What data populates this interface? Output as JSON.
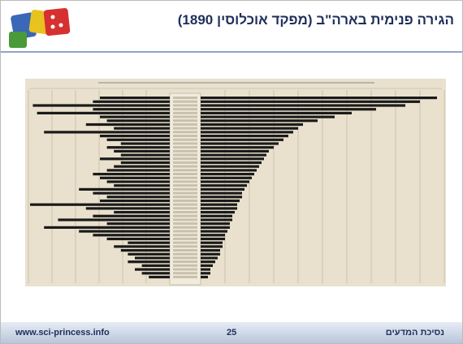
{
  "header": {
    "title": "הגירה פנימית בארה\"ב (מפקד אוכלוסין 1890)"
  },
  "figure": {
    "emigrants": [
      97,
      90,
      84,
      72,
      62,
      55,
      48,
      42,
      40,
      38,
      36,
      34,
      32,
      30,
      28,
      27,
      26,
      25,
      24,
      23,
      22,
      21,
      20,
      19,
      18,
      17,
      17,
      16,
      15,
      15,
      14,
      13,
      13,
      12,
      12,
      11,
      10,
      10,
      9,
      9,
      8,
      8,
      7,
      6,
      5,
      4,
      4,
      3
    ],
    "immigrants": [
      50,
      55,
      98,
      55,
      95,
      50,
      45,
      60,
      40,
      90,
      50,
      45,
      35,
      45,
      40,
      35,
      50,
      35,
      40,
      45,
      55,
      50,
      45,
      40,
      65,
      55,
      45,
      50,
      100,
      60,
      40,
      55,
      80,
      45,
      90,
      65,
      55,
      45,
      30,
      40,
      35,
      30,
      25,
      30,
      20,
      25,
      20,
      15
    ],
    "xlim": [
      0,
      100
    ]
  },
  "footer": {
    "url": "www.sci-princess.info",
    "page": "25",
    "brand": "נסיכת המדעים"
  }
}
